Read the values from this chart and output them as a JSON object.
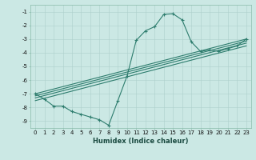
{
  "xlabel": "Humidex (Indice chaleur)",
  "ylabel": "",
  "background_color": "#cbe8e4",
  "grid_color": "#aecfcb",
  "line_color": "#2e7d6e",
  "xlim": [
    -0.5,
    23.5
  ],
  "ylim": [
    -9.5,
    -0.5
  ],
  "xticks": [
    0,
    1,
    2,
    3,
    4,
    5,
    6,
    7,
    8,
    9,
    10,
    11,
    12,
    13,
    14,
    15,
    16,
    17,
    18,
    19,
    20,
    21,
    22,
    23
  ],
  "yticks": [
    -1,
    -2,
    -3,
    -4,
    -5,
    -6,
    -7,
    -8,
    -9
  ],
  "curve1_x": [
    0,
    1,
    2,
    3,
    4,
    5,
    6,
    7,
    8,
    9,
    10,
    11,
    12,
    13,
    14,
    15,
    16,
    17,
    18,
    19,
    20,
    21,
    22,
    23
  ],
  "curve1_y": [
    -7.0,
    -7.4,
    -7.9,
    -7.9,
    -8.3,
    -8.5,
    -8.7,
    -8.9,
    -9.3,
    -7.5,
    -5.7,
    -3.1,
    -2.4,
    -2.1,
    -1.2,
    -1.15,
    -1.6,
    -3.2,
    -3.9,
    -3.8,
    -3.9,
    -3.7,
    -3.5,
    -3.0
  ],
  "straight_lines": [
    {
      "x": [
        0,
        23
      ],
      "y": [
        -7.0,
        -3.0
      ]
    },
    {
      "x": [
        0,
        23
      ],
      "y": [
        -7.15,
        -3.15
      ]
    },
    {
      "x": [
        0,
        23
      ],
      "y": [
        -7.3,
        -3.3
      ]
    },
    {
      "x": [
        0,
        23
      ],
      "y": [
        -7.5,
        -3.5
      ]
    }
  ],
  "marker": "+",
  "markersize": 3,
  "markeredgewidth": 0.8,
  "linewidth": 0.8,
  "xlabel_fontsize": 6,
  "tick_fontsize": 5,
  "xlabel_fontweight": "bold",
  "xlabel_color": "#1a4a40"
}
